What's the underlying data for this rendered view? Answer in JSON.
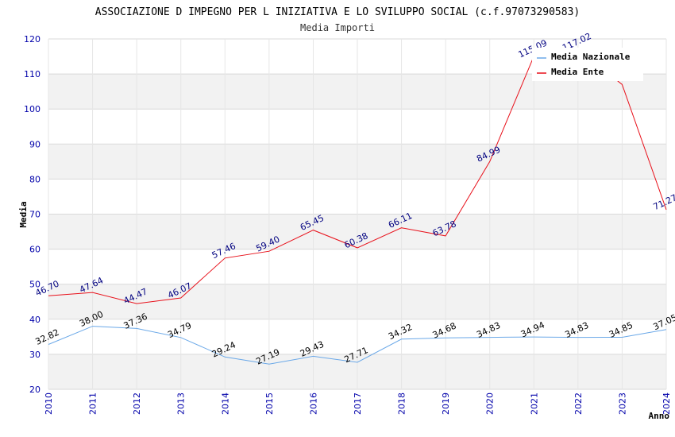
{
  "chart_data": {
    "type": "line",
    "title": "ASSOCIAZIONE D IMPEGNO PER L INIZIATIVA E LO SVILUPPO SOCIAL (c.f.97073290583)",
    "subtitle": "Media Importi",
    "xlabel": "Anno",
    "ylabel": "Media",
    "ylim": [
      20,
      120
    ],
    "yticks": [
      20,
      30,
      40,
      50,
      60,
      70,
      80,
      90,
      100,
      110,
      120
    ],
    "categories": [
      "2010",
      "2011",
      "2012",
      "2013",
      "2014",
      "2015",
      "2016",
      "2017",
      "2018",
      "2019",
      "2020",
      "2021",
      "2022",
      "2023",
      "2024"
    ],
    "series": [
      {
        "name": "Media Nazionale",
        "color": "#6aa8e8",
        "values": [
          32.82,
          38.0,
          37.36,
          34.79,
          29.24,
          27.19,
          29.43,
          27.71,
          34.32,
          34.68,
          34.83,
          34.94,
          34.83,
          34.85,
          37.05
        ],
        "labels": [
          "32.82",
          "38.00",
          "37.36",
          "34.79",
          "29.24",
          "27.19",
          "29.43",
          "27.71",
          "34.32",
          "34.68",
          "34.83",
          "34.94",
          "34.83",
          "34.85",
          "37.05"
        ]
      },
      {
        "name": "Media Ente",
        "color": "#e8101a",
        "values": [
          46.7,
          47.64,
          44.47,
          46.07,
          57.46,
          59.4,
          65.45,
          60.38,
          66.11,
          63.78,
          84.99,
          115.09,
          117.02,
          107.0,
          71.27
        ],
        "labels": [
          "46.70",
          "47.64",
          "44.47",
          "46.07",
          "57.46",
          "59.40",
          "65.45",
          "60.38",
          "66.11",
          "63.78",
          "84.99",
          "115.09",
          "117.02",
          "",
          "71.27"
        ]
      }
    ],
    "legend": "top-right",
    "grid": true
  }
}
